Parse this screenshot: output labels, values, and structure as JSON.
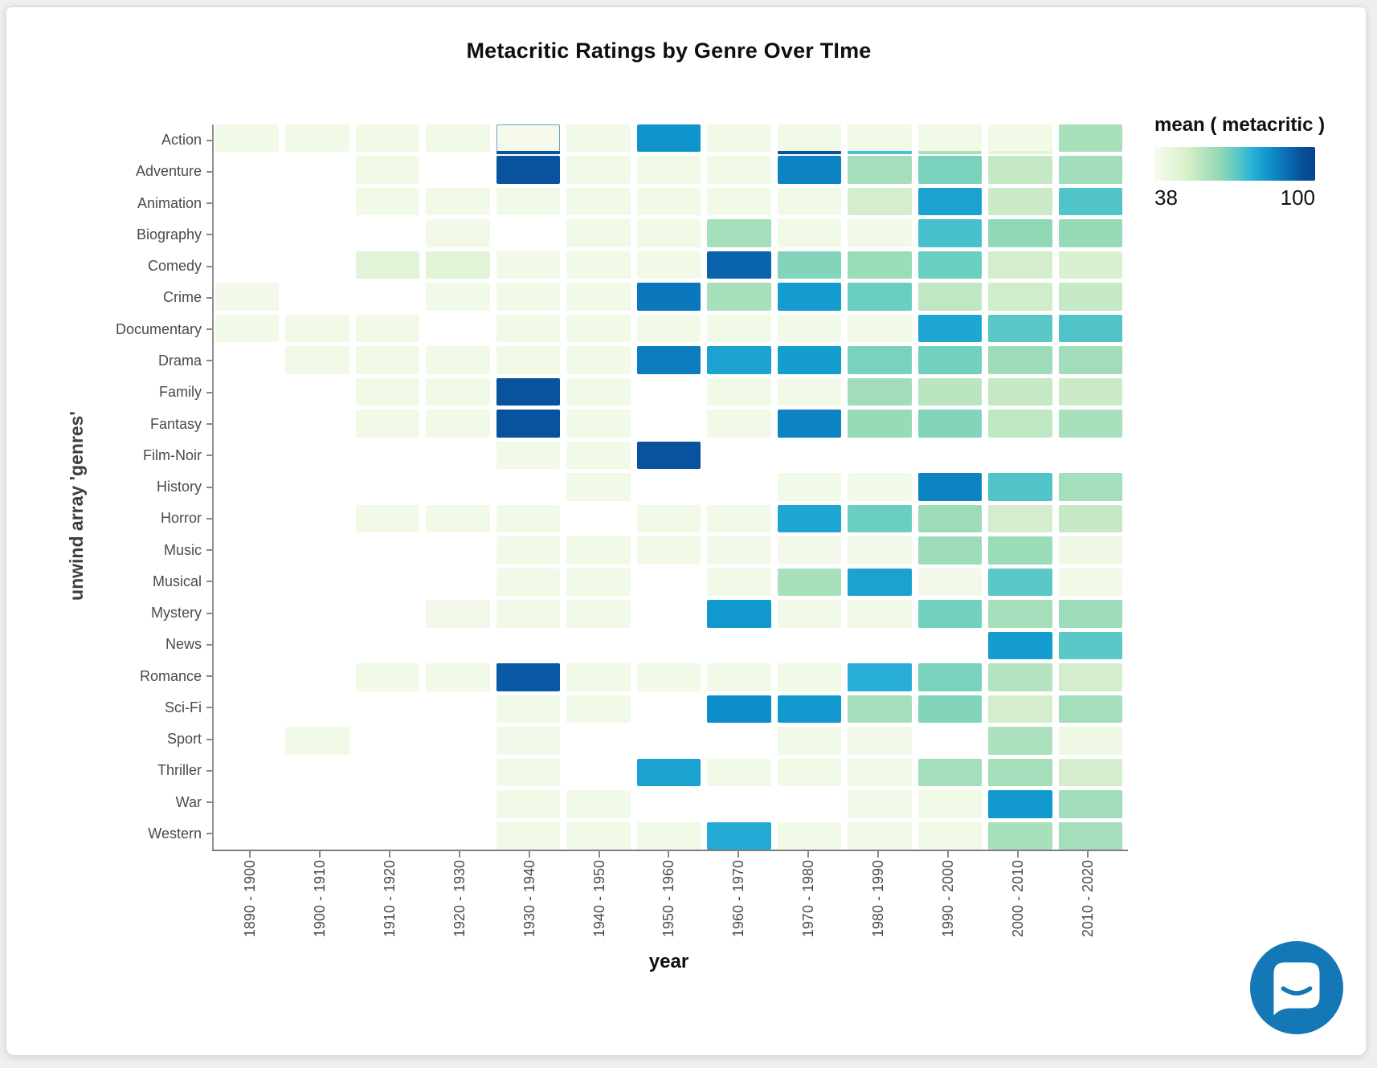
{
  "title": "Metacritic Ratings by Genre Over TIme",
  "axes": {
    "x_label": "year",
    "y_label": "unwind array 'genres'"
  },
  "legend": {
    "title": "mean ( metacritic )",
    "min": "38",
    "max": "100"
  },
  "widgets": {
    "chat_button_color": "#1478b6"
  },
  "chart_data": {
    "type": "heatmap",
    "title": "Metacritic Ratings by Genre Over TIme",
    "xlabel": "year",
    "ylabel": "unwind array 'genres'",
    "legend_title": "mean ( metacritic )",
    "value_range": [
      38,
      100
    ],
    "legend_position": "top-right",
    "grid": false,
    "x_categories": [
      "1890 - 1900",
      "1900 - 1910",
      "1910 - 1920",
      "1920 - 1930",
      "1930 - 1940",
      "1940 - 1950",
      "1950 - 1960",
      "1960 - 1970",
      "1970 - 1980",
      "1980 - 1990",
      "1990 - 2000",
      "2000 - 2010",
      "2010 - 2020"
    ],
    "y_categories": [
      "Action",
      "Adventure",
      "Animation",
      "Biography",
      "Comedy",
      "Crime",
      "Documentary",
      "Drama",
      "Family",
      "Fantasy",
      "Film-Noir",
      "History",
      "Horror",
      "Music",
      "Musical",
      "Mystery",
      "News",
      "Romance",
      "Sci-Fi",
      "Sport",
      "Thriller",
      "War",
      "Western"
    ],
    "cell_note": "values are mean metacritic estimates; null = no data; [value, underlineValue] = cell with thin colored bar at bottom edge; third element 1 = thin blue outline",
    "colormap_stops": [
      [
        0.0,
        "#f7fbef"
      ],
      [
        0.1,
        "#eaf6de"
      ],
      [
        0.2,
        "#ceecc8"
      ],
      [
        0.3,
        "#aae0bc"
      ],
      [
        0.4,
        "#93d9b6"
      ],
      [
        0.5,
        "#62ccc2"
      ],
      [
        0.6,
        "#2db3d8"
      ],
      [
        0.7,
        "#0f97cd"
      ],
      [
        0.8,
        "#0c74ba"
      ],
      [
        0.9,
        "#0955a2"
      ],
      [
        1.0,
        "#07448e"
      ]
    ],
    "rows": [
      {
        "genre": "Action",
        "values": [
          41,
          41,
          41,
          41,
          [
            39,
            95,
            1
          ],
          41,
          82,
          41,
          [
            41,
            95
          ],
          [
            41,
            72
          ],
          [
            41,
            57
          ],
          [
            41,
            46
          ],
          57
        ]
      },
      {
        "genre": "Adventure",
        "values": [
          null,
          null,
          41,
          null,
          95,
          41,
          41,
          41,
          85,
          58,
          66,
          52,
          59
        ]
      },
      {
        "genre": "Animation",
        "values": [
          null,
          null,
          41,
          41,
          41,
          41,
          41,
          41,
          41,
          49,
          79,
          51,
          71
        ]
      },
      {
        "genre": "Biography",
        "values": [
          null,
          null,
          null,
          40,
          null,
          41,
          41,
          58,
          41,
          41,
          72,
          63,
          62
        ]
      },
      {
        "genre": "Comedy",
        "values": [
          null,
          null,
          46,
          46,
          41,
          41,
          41,
          91,
          65,
          61,
          68,
          49,
          48
        ]
      },
      {
        "genre": "Crime",
        "values": [
          40,
          null,
          null,
          41,
          41,
          41,
          87,
          57,
          80,
          68,
          53,
          50,
          52
        ]
      },
      {
        "genre": "Documentary",
        "values": [
          41,
          41,
          41,
          null,
          41,
          41,
          41,
          41,
          41,
          41,
          78,
          70,
          71
        ]
      },
      {
        "genre": "Drama",
        "values": [
          null,
          41,
          41,
          41,
          41,
          41,
          86,
          79,
          80,
          66,
          67,
          60,
          59
        ]
      },
      {
        "genre": "Family",
        "values": [
          null,
          null,
          41,
          41,
          95,
          41,
          null,
          41,
          41,
          59,
          54,
          52,
          51
        ]
      },
      {
        "genre": "Fantasy",
        "values": [
          null,
          null,
          41,
          41,
          95,
          41,
          null,
          41,
          85,
          62,
          65,
          53,
          57
        ]
      },
      {
        "genre": "Film-Noir",
        "values": [
          null,
          null,
          null,
          null,
          41,
          41,
          95,
          null,
          null,
          null,
          null,
          null,
          null
        ]
      },
      {
        "genre": "History",
        "values": [
          null,
          null,
          null,
          null,
          null,
          41,
          null,
          null,
          41,
          41,
          85,
          71,
          58
        ]
      },
      {
        "genre": "Horror",
        "values": [
          null,
          null,
          41,
          41,
          41,
          null,
          41,
          41,
          78,
          68,
          60,
          49,
          52
        ]
      },
      {
        "genre": "Music",
        "values": [
          null,
          null,
          null,
          null,
          41,
          41,
          41,
          40,
          40,
          40,
          60,
          61,
          42
        ]
      },
      {
        "genre": "Musical",
        "values": [
          null,
          null,
          null,
          null,
          41,
          41,
          null,
          41,
          57,
          79,
          40,
          70,
          41
        ]
      },
      {
        "genre": "Mystery",
        "values": [
          null,
          null,
          null,
          40,
          41,
          41,
          null,
          81,
          41,
          41,
          67,
          58,
          60
        ]
      },
      {
        "genre": "News",
        "values": [
          null,
          null,
          null,
          null,
          null,
          null,
          null,
          null,
          null,
          null,
          null,
          80,
          70
        ]
      },
      {
        "genre": "Romance",
        "values": [
          null,
          null,
          41,
          41,
          93,
          41,
          41,
          41,
          41,
          76,
          66,
          55,
          49
        ]
      },
      {
        "genre": "Sci-Fi",
        "values": [
          null,
          null,
          null,
          null,
          41,
          41,
          null,
          83,
          81,
          58,
          65,
          49,
          58
        ]
      },
      {
        "genre": "Sport",
        "values": [
          null,
          41,
          null,
          null,
          40,
          null,
          null,
          null,
          41,
          40,
          null,
          56,
          42
        ]
      },
      {
        "genre": "Thriller",
        "values": [
          null,
          null,
          null,
          null,
          41,
          null,
          79,
          41,
          41,
          41,
          58,
          58,
          49
        ]
      },
      {
        "genre": "War",
        "values": [
          null,
          null,
          null,
          null,
          41,
          41,
          null,
          null,
          null,
          40,
          41,
          81,
          59
        ]
      },
      {
        "genre": "Western",
        "values": [
          null,
          null,
          null,
          null,
          41,
          41,
          41,
          77,
          41,
          40,
          41,
          57,
          58
        ]
      }
    ]
  }
}
